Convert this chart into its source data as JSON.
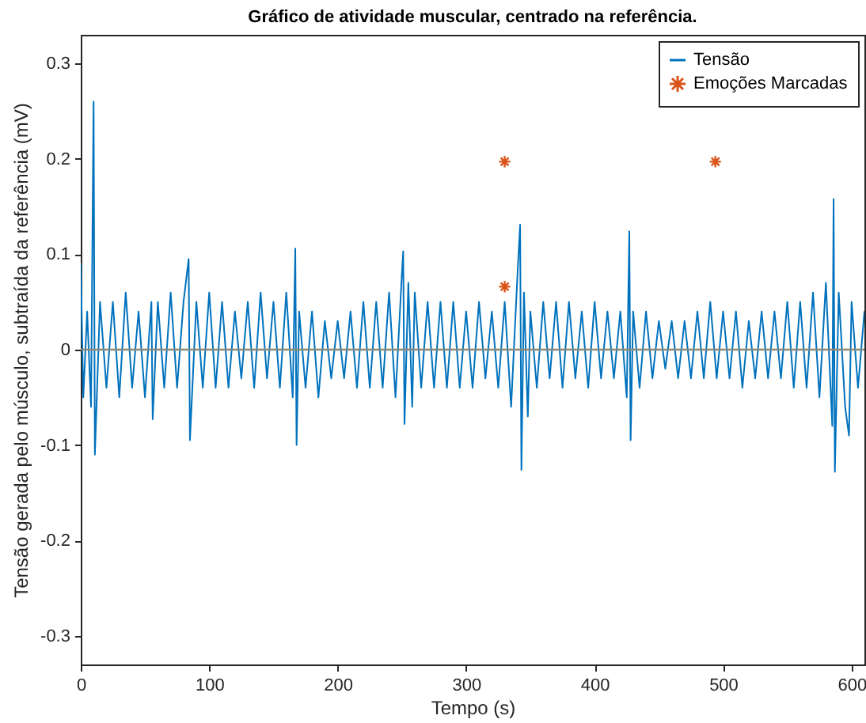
{
  "chart_data": {
    "type": "line",
    "title": "Gráfico de atividade muscular, centrado na referência.",
    "xlabel": "Tempo (s)",
    "ylabel": "Tensão gerada pelo músculo, subtraída da referência (mV)",
    "xlim": [
      0,
      610
    ],
    "ylim": [
      -0.33,
      0.33
    ],
    "xticks": [
      0,
      100,
      200,
      300,
      400,
      500,
      600
    ],
    "yticks": [
      -0.3,
      -0.2,
      -0.1,
      0,
      0.1,
      0.2,
      0.3
    ],
    "legend": "top right",
    "ref_lines": [
      {
        "axis": "y",
        "value": 0,
        "color": "#8a8a7a"
      }
    ],
    "series": [
      {
        "name": "Tensão",
        "color": "#0072bd",
        "x": [
          0,
          2,
          5,
          8,
          10,
          11,
          15,
          20,
          25,
          30,
          35,
          40,
          45,
          50,
          55,
          56,
          60,
          65,
          70,
          75,
          80,
          84,
          85,
          90,
          95,
          100,
          105,
          110,
          115,
          120,
          125,
          130,
          135,
          140,
          145,
          150,
          155,
          160,
          165,
          167,
          168,
          170,
          175,
          180,
          185,
          190,
          195,
          200,
          205,
          210,
          215,
          220,
          225,
          230,
          235,
          240,
          245,
          250,
          251,
          252,
          255,
          258,
          260,
          265,
          270,
          275,
          280,
          285,
          290,
          295,
          300,
          305,
          310,
          315,
          320,
          325,
          330,
          335,
          340,
          342,
          343,
          345,
          348,
          350,
          355,
          360,
          365,
          370,
          375,
          380,
          385,
          390,
          395,
          400,
          405,
          410,
          415,
          420,
          425,
          427,
          428,
          430,
          435,
          440,
          445,
          450,
          455,
          460,
          465,
          470,
          475,
          480,
          485,
          490,
          495,
          500,
          505,
          510,
          515,
          520,
          525,
          530,
          535,
          540,
          545,
          550,
          555,
          560,
          565,
          570,
          575,
          580,
          585,
          586,
          587,
          590,
          595,
          598,
          600,
          605,
          610
        ],
        "values": [
          0.09,
          -0.05,
          0.04,
          -0.06,
          0.26,
          -0.11,
          0.05,
          -0.04,
          0.05,
          -0.05,
          0.06,
          -0.04,
          0.04,
          -0.05,
          0.05,
          -0.073,
          0.05,
          -0.04,
          0.06,
          -0.04,
          0.05,
          0.095,
          -0.095,
          0.05,
          -0.04,
          0.06,
          -0.04,
          0.05,
          -0.04,
          0.04,
          -0.03,
          0.05,
          -0.04,
          0.06,
          -0.03,
          0.05,
          -0.04,
          0.06,
          -0.05,
          0.106,
          -0.1,
          0.04,
          -0.04,
          0.04,
          -0.05,
          0.03,
          -0.03,
          0.03,
          -0.03,
          0.04,
          -0.04,
          0.05,
          -0.04,
          0.05,
          -0.04,
          0.06,
          -0.05,
          0.08,
          0.103,
          -0.078,
          0.07,
          -0.06,
          0.06,
          -0.04,
          0.05,
          -0.04,
          0.05,
          -0.04,
          0.05,
          -0.04,
          0.04,
          -0.04,
          0.05,
          -0.03,
          0.04,
          -0.04,
          0.05,
          -0.06,
          0.08,
          0.131,
          -0.126,
          0.06,
          -0.07,
          0.04,
          -0.04,
          0.05,
          -0.03,
          0.05,
          -0.04,
          0.05,
          -0.03,
          0.04,
          -0.04,
          0.05,
          -0.03,
          0.04,
          -0.03,
          0.04,
          -0.05,
          0.124,
          -0.095,
          0.04,
          -0.04,
          0.04,
          -0.03,
          0.03,
          -0.02,
          0.03,
          -0.03,
          0.03,
          -0.03,
          0.04,
          -0.03,
          0.05,
          -0.03,
          0.04,
          -0.03,
          0.04,
          -0.04,
          0.03,
          -0.03,
          0.04,
          -0.03,
          0.04,
          -0.03,
          0.05,
          -0.04,
          0.05,
          -0.04,
          0.06,
          -0.05,
          0.07,
          -0.08,
          0.158,
          -0.128,
          0.06,
          -0.06,
          -0.09,
          0.05,
          -0.04,
          0.04
        ]
      },
      {
        "name": "Emoções Marcadas",
        "type": "scatter",
        "marker": "cross",
        "color": "#d95319",
        "x": [
          330,
          330,
          494
        ],
        "values": [
          0.197,
          0.066,
          0.197
        ]
      }
    ]
  }
}
